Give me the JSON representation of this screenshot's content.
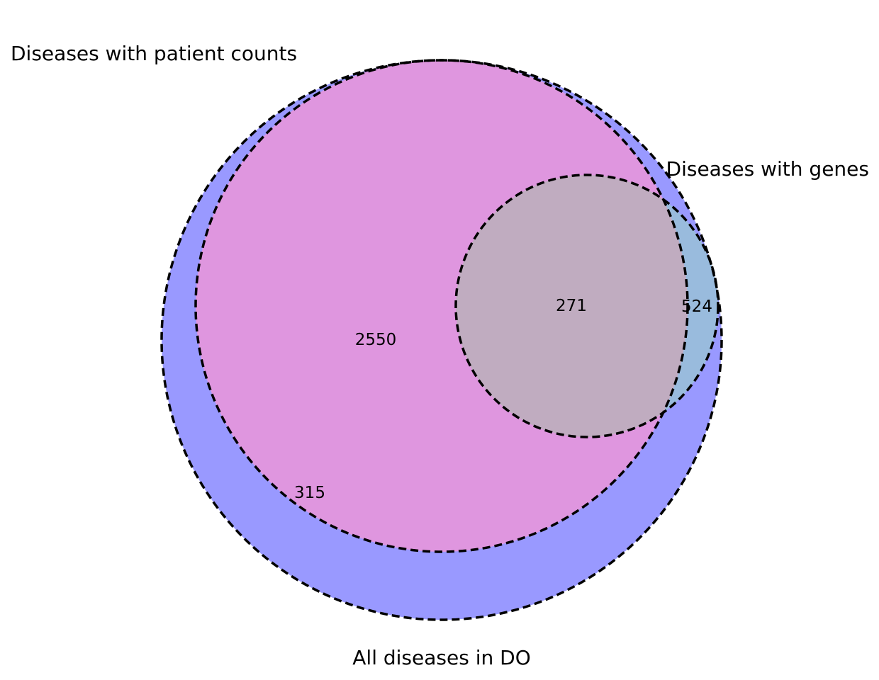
{
  "venn": {
    "sets": {
      "all_do": {
        "label": "All diseases in DO",
        "color": "#9999ff"
      },
      "patient_counts": {
        "label": "Diseases with patient counts",
        "color": "#df96df"
      },
      "genes": {
        "label": "Diseases with genes",
        "color": "#99bbdd"
      }
    },
    "overlap_color": "#c0acc0",
    "regions": {
      "patient_only": "2550",
      "patient_and_genes": "271",
      "genes_only": "524",
      "do_only": "315"
    },
    "outline_style": "dashed"
  }
}
